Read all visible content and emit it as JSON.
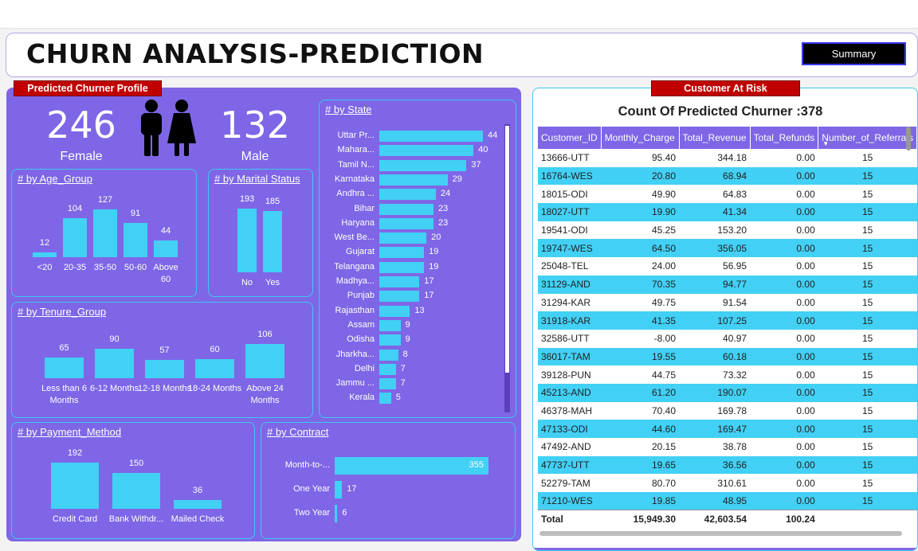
{
  "title": "CHURN ANALYSIS-PREDICTION",
  "summary_button": "Summary",
  "profile_tag": "Predicted Churner Profile",
  "risk_tag": "Customer At Risk",
  "female": {
    "value": "246",
    "label": "Female"
  },
  "male": {
    "value": "132",
    "label": "Male"
  },
  "colors": {
    "panel": "#7f66e6",
    "bar": "#42d0f5",
    "tag": "#c00000"
  },
  "age_group": {
    "title": "# by Age_Group",
    "chart_data": {
      "type": "bar",
      "categories": [
        "<20",
        "20-35",
        "35-50",
        "50-60",
        "Above 60"
      ],
      "values": [
        12,
        104,
        127,
        91,
        44
      ]
    }
  },
  "marital": {
    "title": "# by Marital Status",
    "chart_data": {
      "type": "bar",
      "categories": [
        "No",
        "Yes"
      ],
      "values": [
        193,
        185
      ]
    }
  },
  "tenure": {
    "title": "# by Tenure_Group",
    "chart_data": {
      "type": "bar",
      "categories": [
        "Less than 6 Months",
        "6-12 Months",
        "12-18 Months",
        "18-24 Months",
        "Above 24 Months"
      ],
      "values": [
        65,
        90,
        57,
        60,
        106
      ]
    }
  },
  "state": {
    "title": "# by State",
    "chart_data": {
      "type": "bar",
      "categories": [
        "Uttar Pr...",
        "Mahara...",
        "Tamil N...",
        "Karnataka",
        "Andhra ...",
        "Bihar",
        "Haryana",
        "West Be...",
        "Gujarat",
        "Telangana",
        "Madhya...",
        "Punjab",
        "Rajasthan",
        "Assam",
        "Odisha",
        "Jharkha...",
        "Delhi",
        "Jammu ...",
        "Kerala"
      ],
      "values": [
        44,
        40,
        37,
        29,
        24,
        23,
        23,
        20,
        19,
        19,
        17,
        17,
        13,
        9,
        9,
        8,
        7,
        7,
        5
      ]
    }
  },
  "payment": {
    "title": "# by Payment_Method",
    "chart_data": {
      "type": "bar",
      "categories": [
        "Credit Card",
        "Bank Withdr...",
        "Mailed Check"
      ],
      "values": [
        192,
        150,
        36
      ]
    }
  },
  "contract": {
    "title": "# by Contract",
    "chart_data": {
      "type": "bar",
      "categories": [
        "Month-to-...",
        "One Year",
        "Two Year"
      ],
      "values": [
        355,
        17,
        6
      ]
    }
  },
  "table": {
    "title": "Count Of Predicted Churner :378",
    "headers": [
      "Customer_ID",
      "Monthly_Charge",
      "Total_Revenue",
      "Total_Refunds",
      "Number_of_Referrals"
    ],
    "rows": [
      [
        "13666-UTT",
        "95.40",
        "344.18",
        "0.00",
        "15"
      ],
      [
        "16764-WES",
        "20.80",
        "68.94",
        "0.00",
        "15"
      ],
      [
        "18015-ODI",
        "49.90",
        "64.83",
        "0.00",
        "15"
      ],
      [
        "18027-UTT",
        "19.90",
        "41.34",
        "0.00",
        "15"
      ],
      [
        "19541-ODI",
        "45.25",
        "153.20",
        "0.00",
        "15"
      ],
      [
        "19747-WES",
        "64.50",
        "356.05",
        "0.00",
        "15"
      ],
      [
        "25048-TEL",
        "24.00",
        "56.95",
        "0.00",
        "15"
      ],
      [
        "31129-AND",
        "70.35",
        "94.77",
        "0.00",
        "15"
      ],
      [
        "31294-KAR",
        "49.75",
        "91.54",
        "0.00",
        "15"
      ],
      [
        "31918-KAR",
        "41.35",
        "107.25",
        "0.00",
        "15"
      ],
      [
        "32586-UTT",
        "-8.00",
        "40.97",
        "0.00",
        "15"
      ],
      [
        "36017-TAM",
        "19.55",
        "60.18",
        "0.00",
        "15"
      ],
      [
        "39128-PUN",
        "44.75",
        "73.32",
        "0.00",
        "15"
      ],
      [
        "45213-AND",
        "61.20",
        "190.07",
        "0.00",
        "15"
      ],
      [
        "46378-MAH",
        "70.40",
        "169.78",
        "0.00",
        "15"
      ],
      [
        "47133-ODI",
        "44.60",
        "169.47",
        "0.00",
        "15"
      ],
      [
        "47492-AND",
        "20.15",
        "38.78",
        "0.00",
        "15"
      ],
      [
        "47737-UTT",
        "19.65",
        "36.56",
        "0.00",
        "15"
      ],
      [
        "52279-TAM",
        "80.70",
        "310.61",
        "0.00",
        "15"
      ],
      [
        "71210-WES",
        "19.85",
        "48.95",
        "0.00",
        "15"
      ]
    ],
    "total": [
      "Total",
      "15,949.30",
      "42,603.54",
      "100.24",
      ""
    ]
  }
}
